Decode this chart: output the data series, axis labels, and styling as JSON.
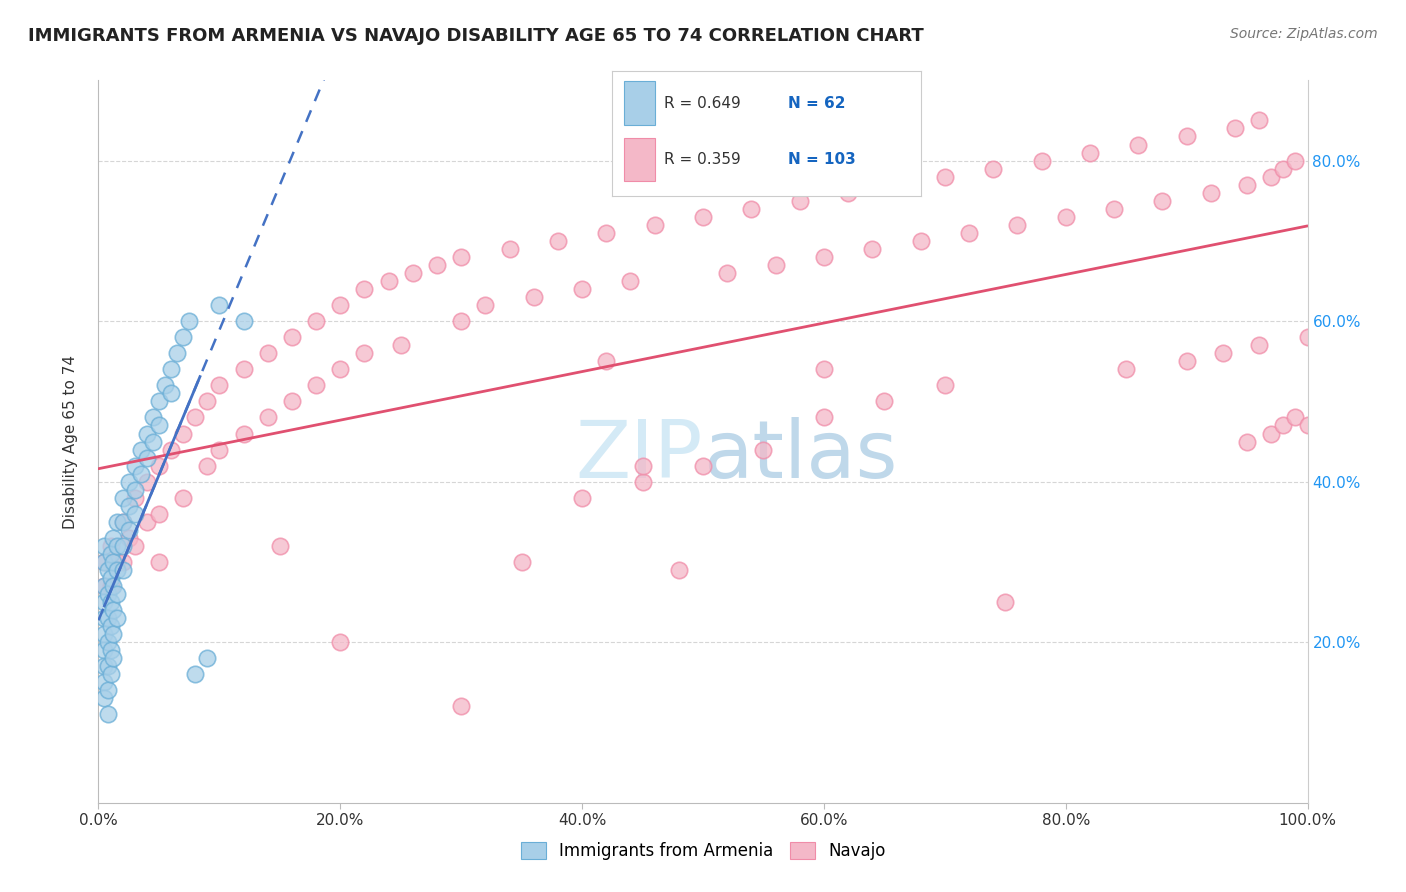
{
  "title": "IMMIGRANTS FROM ARMENIA VS NAVAJO DISABILITY AGE 65 TO 74 CORRELATION CHART",
  "source": "Source: ZipAtlas.com",
  "ylabel": "Disability Age 65 to 74",
  "xlim": [
    0.0,
    1.0
  ],
  "ylim": [
    0.0,
    0.9
  ],
  "x_tick_labels": [
    "0.0%",
    "20.0%",
    "40.0%",
    "60.0%",
    "80.0%",
    "100.0%"
  ],
  "x_tick_vals": [
    0.0,
    0.2,
    0.4,
    0.6,
    0.8,
    1.0
  ],
  "y_tick_labels": [
    "20.0%",
    "40.0%",
    "60.0%",
    "80.0%"
  ],
  "y_tick_vals": [
    0.2,
    0.4,
    0.6,
    0.8
  ],
  "legend_blue_label": "Immigrants from Armenia",
  "legend_pink_label": "Navajo",
  "R_blue": "0.649",
  "N_blue": "62",
  "R_pink": "0.359",
  "N_pink": "103",
  "blue_color": "#a8cfe8",
  "pink_color": "#f4b8c8",
  "blue_edge_color": "#6aaed6",
  "pink_edge_color": "#f08ca8",
  "blue_line_color": "#4472c4",
  "pink_line_color": "#e05070",
  "watermark_color": "#d0e8f5",
  "title_fontsize": 13,
  "blue_scatter": [
    [
      0.005,
      0.3
    ],
    [
      0.005,
      0.27
    ],
    [
      0.005,
      0.25
    ],
    [
      0.005,
      0.23
    ],
    [
      0.005,
      0.21
    ],
    [
      0.005,
      0.19
    ],
    [
      0.005,
      0.17
    ],
    [
      0.005,
      0.15
    ],
    [
      0.005,
      0.13
    ],
    [
      0.005,
      0.32
    ],
    [
      0.008,
      0.29
    ],
    [
      0.008,
      0.26
    ],
    [
      0.008,
      0.23
    ],
    [
      0.008,
      0.2
    ],
    [
      0.008,
      0.17
    ],
    [
      0.008,
      0.14
    ],
    [
      0.008,
      0.11
    ],
    [
      0.01,
      0.31
    ],
    [
      0.01,
      0.28
    ],
    [
      0.01,
      0.25
    ],
    [
      0.01,
      0.22
    ],
    [
      0.01,
      0.19
    ],
    [
      0.01,
      0.16
    ],
    [
      0.012,
      0.33
    ],
    [
      0.012,
      0.3
    ],
    [
      0.012,
      0.27
    ],
    [
      0.012,
      0.24
    ],
    [
      0.012,
      0.21
    ],
    [
      0.012,
      0.18
    ],
    [
      0.015,
      0.35
    ],
    [
      0.015,
      0.32
    ],
    [
      0.015,
      0.29
    ],
    [
      0.015,
      0.26
    ],
    [
      0.015,
      0.23
    ],
    [
      0.02,
      0.38
    ],
    [
      0.02,
      0.35
    ],
    [
      0.02,
      0.32
    ],
    [
      0.02,
      0.29
    ],
    [
      0.025,
      0.4
    ],
    [
      0.025,
      0.37
    ],
    [
      0.025,
      0.34
    ],
    [
      0.03,
      0.42
    ],
    [
      0.03,
      0.39
    ],
    [
      0.03,
      0.36
    ],
    [
      0.035,
      0.44
    ],
    [
      0.035,
      0.41
    ],
    [
      0.04,
      0.46
    ],
    [
      0.04,
      0.43
    ],
    [
      0.045,
      0.48
    ],
    [
      0.045,
      0.45
    ],
    [
      0.05,
      0.5
    ],
    [
      0.05,
      0.47
    ],
    [
      0.055,
      0.52
    ],
    [
      0.06,
      0.54
    ],
    [
      0.06,
      0.51
    ],
    [
      0.065,
      0.56
    ],
    [
      0.07,
      0.58
    ],
    [
      0.075,
      0.6
    ],
    [
      0.08,
      0.16
    ],
    [
      0.09,
      0.18
    ],
    [
      0.1,
      0.62
    ],
    [
      0.12,
      0.6
    ]
  ],
  "pink_scatter": [
    [
      0.005,
      0.3
    ],
    [
      0.005,
      0.27
    ],
    [
      0.01,
      0.32
    ],
    [
      0.01,
      0.27
    ],
    [
      0.015,
      0.3
    ],
    [
      0.02,
      0.35
    ],
    [
      0.02,
      0.3
    ],
    [
      0.025,
      0.33
    ],
    [
      0.03,
      0.38
    ],
    [
      0.03,
      0.32
    ],
    [
      0.04,
      0.4
    ],
    [
      0.04,
      0.35
    ],
    [
      0.05,
      0.42
    ],
    [
      0.05,
      0.36
    ],
    [
      0.05,
      0.3
    ],
    [
      0.06,
      0.44
    ],
    [
      0.07,
      0.46
    ],
    [
      0.07,
      0.38
    ],
    [
      0.08,
      0.48
    ],
    [
      0.09,
      0.5
    ],
    [
      0.09,
      0.42
    ],
    [
      0.1,
      0.52
    ],
    [
      0.1,
      0.44
    ],
    [
      0.12,
      0.54
    ],
    [
      0.12,
      0.46
    ],
    [
      0.14,
      0.56
    ],
    [
      0.14,
      0.48
    ],
    [
      0.15,
      0.32
    ],
    [
      0.16,
      0.58
    ],
    [
      0.16,
      0.5
    ],
    [
      0.18,
      0.6
    ],
    [
      0.18,
      0.52
    ],
    [
      0.2,
      0.62
    ],
    [
      0.2,
      0.54
    ],
    [
      0.22,
      0.64
    ],
    [
      0.22,
      0.56
    ],
    [
      0.24,
      0.65
    ],
    [
      0.25,
      0.57
    ],
    [
      0.26,
      0.66
    ],
    [
      0.28,
      0.67
    ],
    [
      0.3,
      0.68
    ],
    [
      0.3,
      0.6
    ],
    [
      0.3,
      0.12
    ],
    [
      0.32,
      0.62
    ],
    [
      0.34,
      0.69
    ],
    [
      0.35,
      0.3
    ],
    [
      0.36,
      0.63
    ],
    [
      0.38,
      0.7
    ],
    [
      0.4,
      0.64
    ],
    [
      0.4,
      0.38
    ],
    [
      0.42,
      0.71
    ],
    [
      0.42,
      0.55
    ],
    [
      0.44,
      0.65
    ],
    [
      0.45,
      0.4
    ],
    [
      0.46,
      0.72
    ],
    [
      0.48,
      0.29
    ],
    [
      0.5,
      0.73
    ],
    [
      0.5,
      0.42
    ],
    [
      0.52,
      0.66
    ],
    [
      0.54,
      0.74
    ],
    [
      0.55,
      0.44
    ],
    [
      0.56,
      0.67
    ],
    [
      0.58,
      0.75
    ],
    [
      0.6,
      0.68
    ],
    [
      0.6,
      0.48
    ],
    [
      0.62,
      0.76
    ],
    [
      0.64,
      0.69
    ],
    [
      0.65,
      0.5
    ],
    [
      0.66,
      0.77
    ],
    [
      0.68,
      0.7
    ],
    [
      0.7,
      0.78
    ],
    [
      0.7,
      0.52
    ],
    [
      0.72,
      0.71
    ],
    [
      0.74,
      0.79
    ],
    [
      0.75,
      0.25
    ],
    [
      0.76,
      0.72
    ],
    [
      0.78,
      0.8
    ],
    [
      0.8,
      0.73
    ],
    [
      0.82,
      0.81
    ],
    [
      0.84,
      0.74
    ],
    [
      0.85,
      0.54
    ],
    [
      0.86,
      0.82
    ],
    [
      0.88,
      0.75
    ],
    [
      0.9,
      0.83
    ],
    [
      0.9,
      0.55
    ],
    [
      0.92,
      0.76
    ],
    [
      0.93,
      0.56
    ],
    [
      0.94,
      0.84
    ],
    [
      0.95,
      0.77
    ],
    [
      0.95,
      0.45
    ],
    [
      0.96,
      0.85
    ],
    [
      0.96,
      0.57
    ],
    [
      0.97,
      0.78
    ],
    [
      0.97,
      0.46
    ],
    [
      0.98,
      0.79
    ],
    [
      0.98,
      0.47
    ],
    [
      0.99,
      0.8
    ],
    [
      0.99,
      0.48
    ],
    [
      1.0,
      0.58
    ],
    [
      1.0,
      0.47
    ],
    [
      0.2,
      0.2
    ],
    [
      0.45,
      0.42
    ],
    [
      0.6,
      0.54
    ]
  ]
}
